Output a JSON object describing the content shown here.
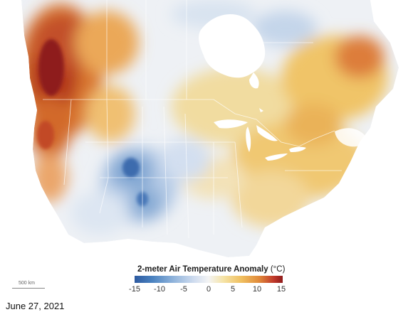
{
  "map": {
    "legend": {
      "title": "2-meter Air Temperature Anomaly",
      "unit": "(°C)",
      "ticks": [
        "-15",
        "-10",
        "-5",
        "0",
        "5",
        "10",
        "15"
      ],
      "scale_range": [
        -15,
        15
      ],
      "colors": {
        "cold_extreme": "#2d5aa0",
        "cold": "#8fb3db",
        "neutral": "#f4f4f4",
        "warm": "#f0c060",
        "hot": "#e08a3a",
        "hot_extreme": "#8e1b1b"
      }
    },
    "scale_bar": {
      "label": "500 km"
    }
  },
  "caption": {
    "date": "June 27, 2021"
  }
}
